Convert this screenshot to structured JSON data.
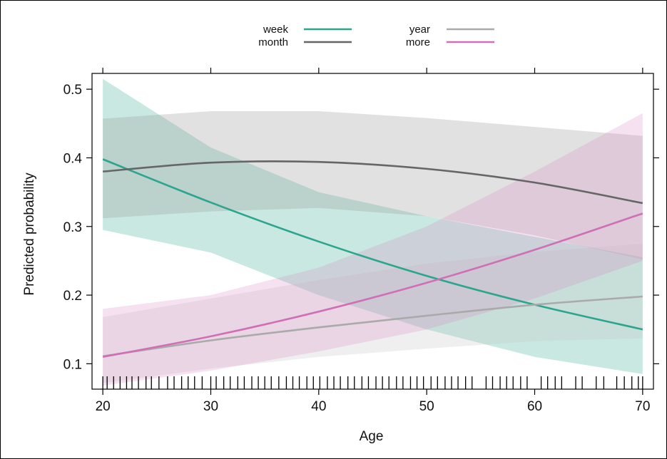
{
  "chart_data": {
    "type": "line",
    "xlabel": "Age",
    "ylabel": "Predicted probability",
    "xlim": [
      19,
      71
    ],
    "ylim": [
      0.063,
      0.523
    ],
    "x_ticks": [
      20,
      30,
      40,
      50,
      60,
      70
    ],
    "y_ticks": [
      0.1,
      0.2,
      0.3,
      0.4,
      0.5
    ],
    "x_tick_labels": [
      "20",
      "30",
      "40",
      "50",
      "60",
      "70"
    ],
    "y_tick_labels": [
      "0.1",
      "0.2",
      "0.3",
      "0.4",
      "0.5"
    ],
    "legend_position": "top",
    "x": [
      20,
      30,
      40,
      50,
      60,
      70
    ],
    "series": [
      {
        "name": "week",
        "color": "#2ca58d",
        "band_color": "#2ca58d",
        "values": [
          0.398,
          0.335,
          0.278,
          0.228,
          0.186,
          0.15
        ],
        "lower": [
          0.295,
          0.262,
          0.2,
          0.15,
          0.11,
          0.085
        ],
        "upper": [
          0.515,
          0.415,
          0.35,
          0.315,
          0.285,
          0.255
        ]
      },
      {
        "name": "month",
        "color": "#666666",
        "band_color": "#9a9a9a",
        "values": [
          0.38,
          0.393,
          0.394,
          0.384,
          0.364,
          0.334
        ],
        "lower": [
          0.312,
          0.322,
          0.327,
          0.315,
          0.287,
          0.252
        ],
        "upper": [
          0.457,
          0.468,
          0.468,
          0.458,
          0.445,
          0.432
        ]
      },
      {
        "name": "year",
        "color": "#aaaaaa",
        "band_color": "#c6c6c6",
        "values": [
          0.111,
          0.134,
          0.153,
          0.17,
          0.186,
          0.198
        ],
        "lower": [
          0.072,
          0.093,
          0.11,
          0.122,
          0.133,
          0.137
        ],
        "upper": [
          0.168,
          0.195,
          0.222,
          0.246,
          0.263,
          0.275
        ]
      },
      {
        "name": "more",
        "color": "#cf6fb5",
        "band_color": "#d98cc4",
        "values": [
          0.11,
          0.14,
          0.176,
          0.218,
          0.266,
          0.319
        ],
        "lower": [
          0.068,
          0.09,
          0.118,
          0.15,
          0.195,
          0.25
        ],
        "upper": [
          0.18,
          0.2,
          0.24,
          0.3,
          0.38,
          0.465
        ]
      }
    ],
    "rug_x": [
      20,
      20.4,
      21,
      21.6,
      22.2,
      22.7,
      23.3,
      24,
      24.5,
      25.2,
      26,
      26.6,
      27.3,
      27.9,
      28.5,
      29.2,
      30,
      30.5,
      31.2,
      31.8,
      32.5,
      33.1,
      33.8,
      34.4,
      35,
      35.6,
      36.3,
      37,
      37.6,
      38.2,
      38.9,
      39.5,
      40.1,
      40.8,
      41.4,
      42,
      42.7,
      43.3,
      44,
      44.6,
      45.3,
      45.9,
      46.5,
      47.2,
      47.8,
      48.5,
      49.1,
      49.7,
      50.4,
      51,
      51.7,
      52.3,
      52.9,
      53.6,
      54.2,
      55.5,
      56.1,
      56.8,
      57.4,
      58,
      58.7,
      59.3,
      60.6,
      61.2,
      61.9,
      62.5,
      63.8,
      64.4,
      65.7,
      66.4,
      67.6,
      68.3,
      69,
      69.6,
      70
    ]
  }
}
